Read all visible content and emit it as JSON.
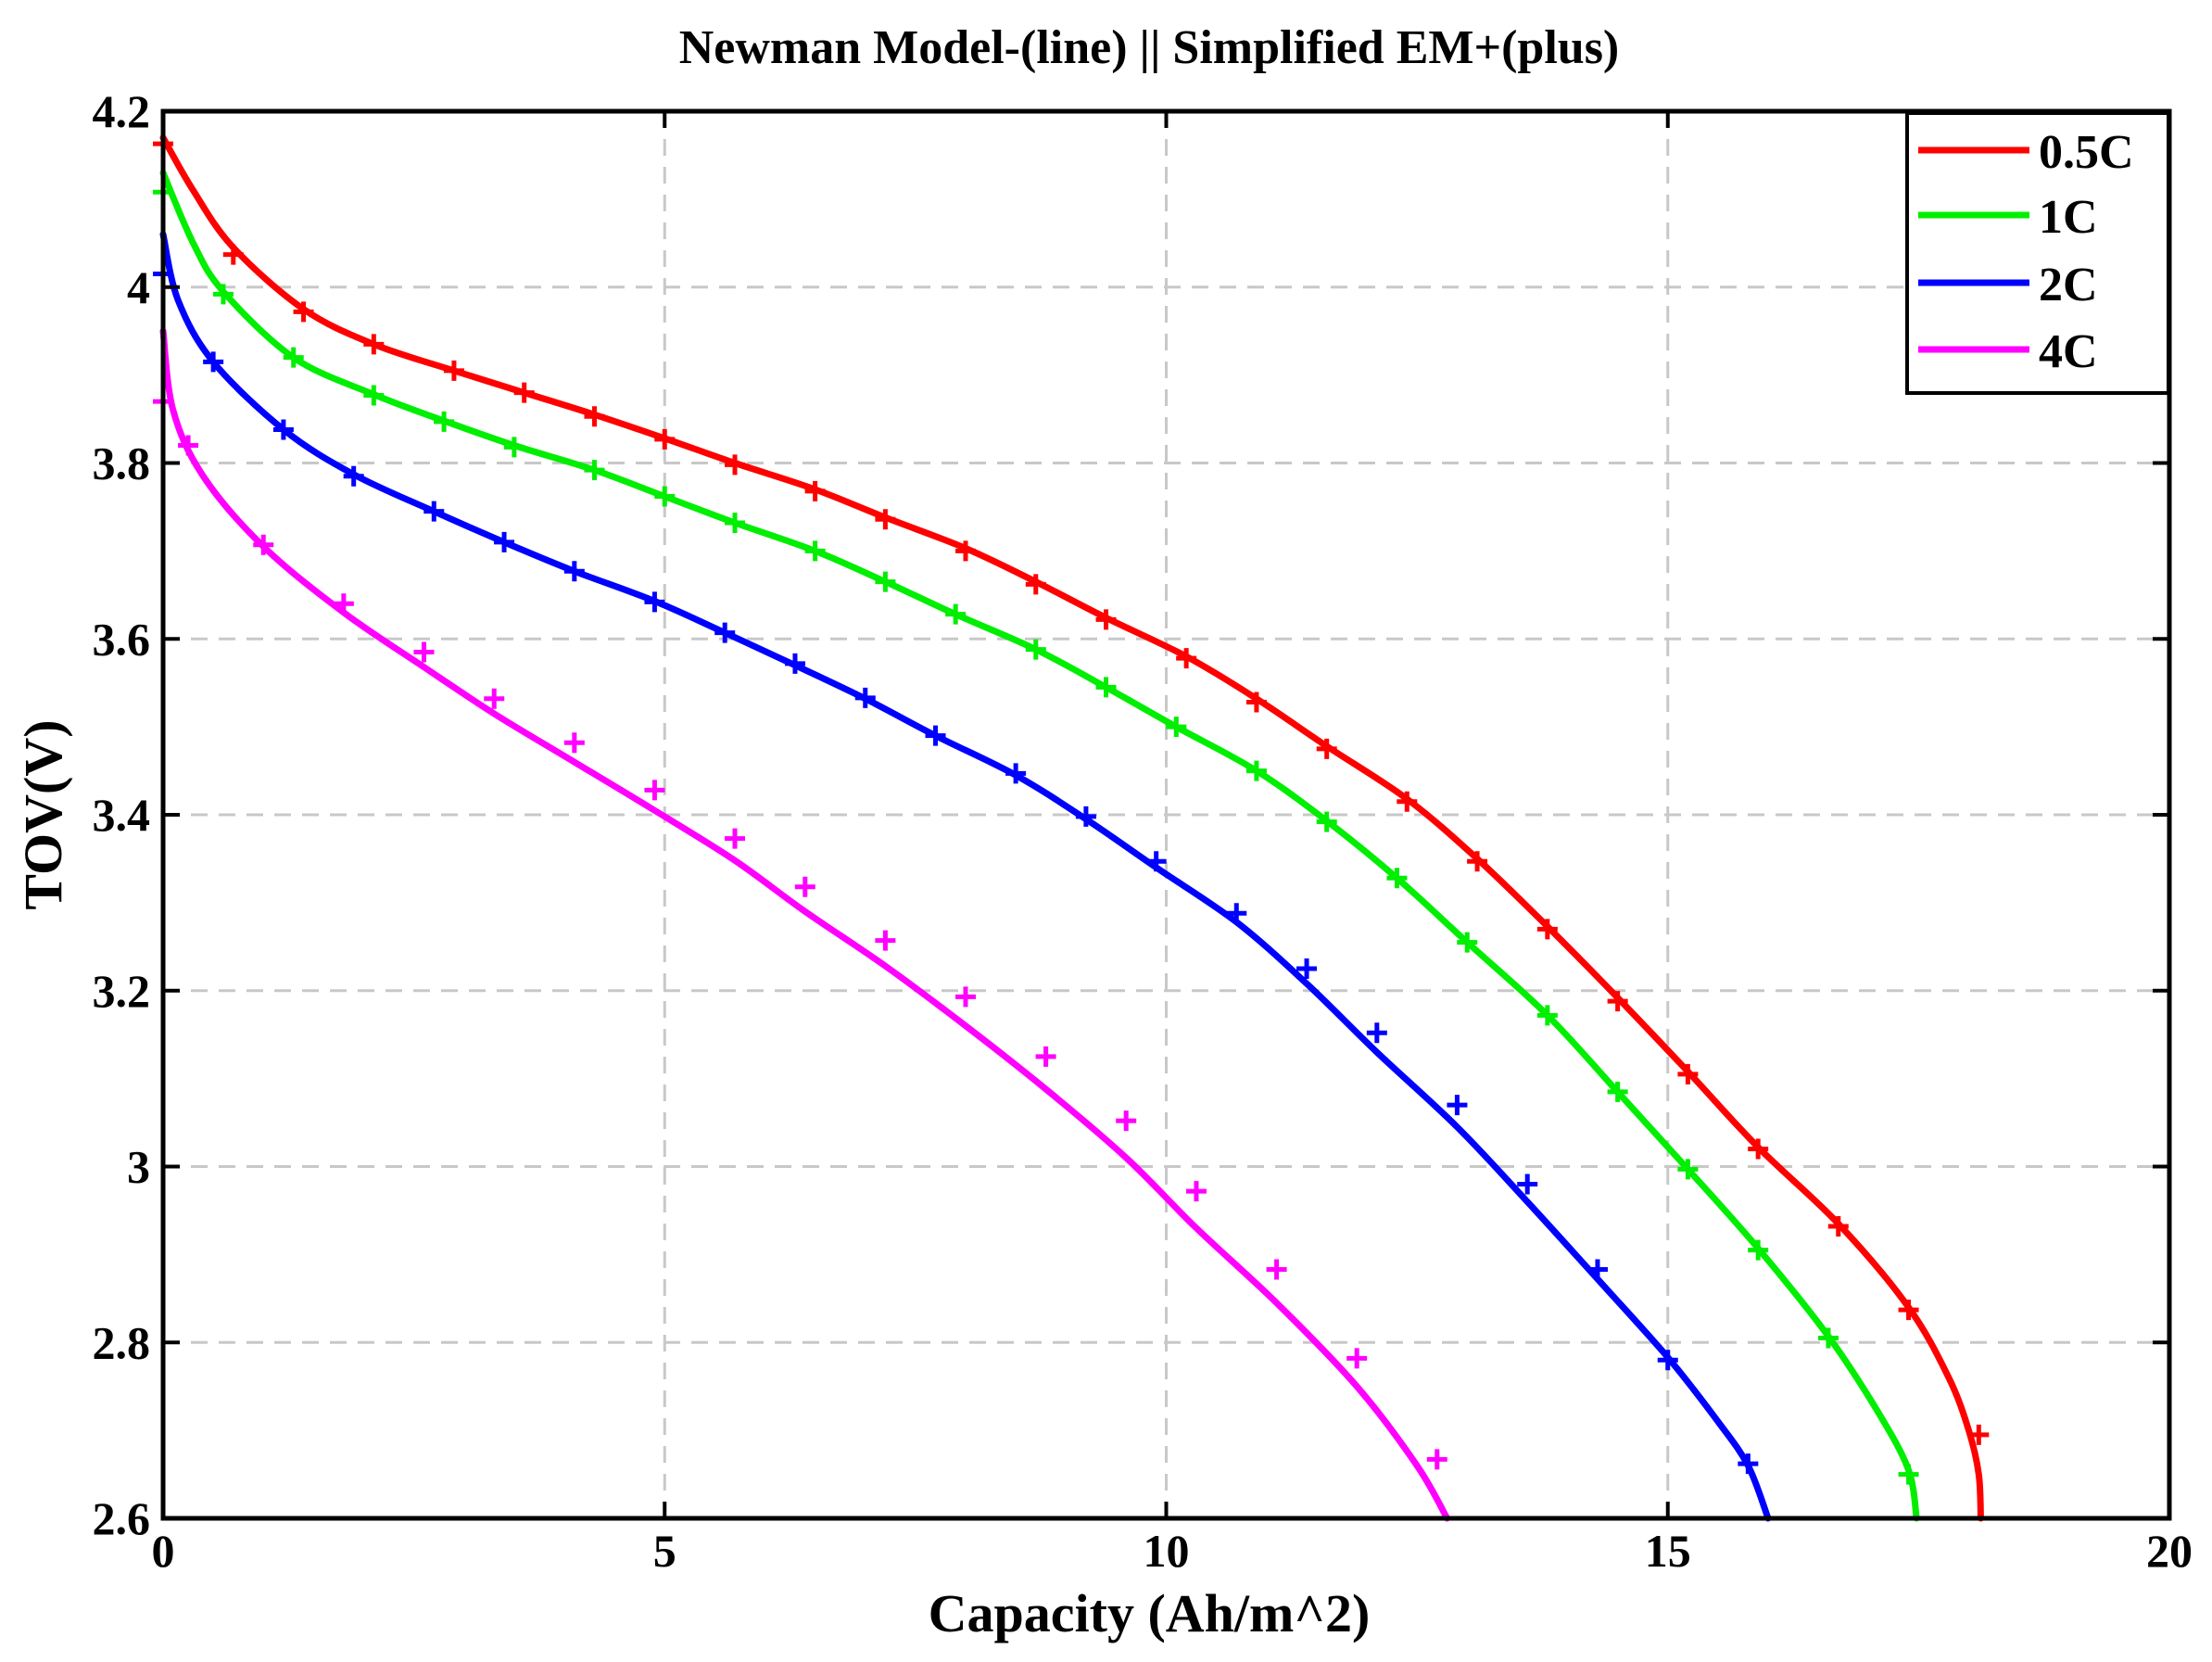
{
  "chart_data": {
    "type": "line",
    "title": "Newman Model-(line) || Simplified EM+(plus)",
    "xlabel": "Capacity (Ah/m^2)",
    "ylabel": "TOV(V)",
    "xlim": [
      0,
      20
    ],
    "ylim": [
      2.6,
      4.2
    ],
    "grid": true,
    "legend_position": "top-right",
    "x_ticks": [
      0,
      5,
      10,
      15,
      20
    ],
    "x_tick_labels": [
      "0",
      "5",
      "10",
      "15",
      "20"
    ],
    "y_ticks": [
      2.6,
      2.8,
      3.0,
      3.2,
      3.4,
      3.6,
      3.8,
      4.0,
      4.2
    ],
    "y_tick_labels": [
      "2.6",
      "2.8",
      "3",
      "3.2",
      "3.4",
      "3.6",
      "3.8",
      "4",
      "4.2"
    ],
    "series": [
      {
        "name": "0.5C",
        "color": "#ff0000",
        "line": [
          [
            0,
            4.17
          ],
          [
            0.3,
            4.11
          ],
          [
            0.7,
            4.045
          ],
          [
            1.4,
            3.975
          ],
          [
            2.1,
            3.935
          ],
          [
            2.9,
            3.905
          ],
          [
            3.6,
            3.88
          ],
          [
            4.3,
            3.855
          ],
          [
            5.0,
            3.828
          ],
          [
            5.7,
            3.8
          ],
          [
            6.5,
            3.77
          ],
          [
            7.2,
            3.738
          ],
          [
            8.0,
            3.703
          ],
          [
            8.7,
            3.665
          ],
          [
            9.4,
            3.624
          ],
          [
            10.2,
            3.58
          ],
          [
            10.9,
            3.532
          ],
          [
            11.6,
            3.478
          ],
          [
            12.4,
            3.418
          ],
          [
            13.1,
            3.35
          ],
          [
            13.8,
            3.273
          ],
          [
            14.5,
            3.192
          ],
          [
            15.2,
            3.108
          ],
          [
            15.9,
            3.022
          ],
          [
            16.7,
            2.935
          ],
          [
            17.4,
            2.84
          ],
          [
            17.8,
            2.76
          ],
          [
            18.0,
            2.7
          ],
          [
            18.1,
            2.65
          ],
          [
            18.12,
            2.6
          ]
        ],
        "markers": [
          [
            0,
            4.163
          ],
          [
            0.7,
            4.037
          ],
          [
            1.4,
            3.972
          ],
          [
            2.1,
            3.935
          ],
          [
            2.9,
            3.905
          ],
          [
            3.6,
            3.88
          ],
          [
            4.3,
            3.853
          ],
          [
            5.0,
            3.827
          ],
          [
            5.7,
            3.798
          ],
          [
            6.5,
            3.768
          ],
          [
            7.2,
            3.736
          ],
          [
            8.0,
            3.7
          ],
          [
            8.7,
            3.662
          ],
          [
            9.4,
            3.622
          ],
          [
            10.2,
            3.578
          ],
          [
            10.9,
            3.528
          ],
          [
            11.6,
            3.475
          ],
          [
            12.4,
            3.415
          ],
          [
            13.1,
            3.347
          ],
          [
            13.8,
            3.27
          ],
          [
            14.5,
            3.188
          ],
          [
            15.2,
            3.105
          ],
          [
            15.9,
            3.02
          ],
          [
            16.7,
            2.932
          ],
          [
            17.4,
            2.837
          ],
          [
            18.1,
            2.695
          ]
        ]
      },
      {
        "name": "1C",
        "color": "#00ee00",
        "line": [
          [
            0,
            4.13
          ],
          [
            0.3,
            4.05
          ],
          [
            0.6,
            3.995
          ],
          [
            1.3,
            3.92
          ],
          [
            2.1,
            3.878
          ],
          [
            2.8,
            3.848
          ],
          [
            3.5,
            3.82
          ],
          [
            4.3,
            3.792
          ],
          [
            5.0,
            3.762
          ],
          [
            5.7,
            3.732
          ],
          [
            6.5,
            3.7
          ],
          [
            7.2,
            3.665
          ],
          [
            7.9,
            3.628
          ],
          [
            8.7,
            3.588
          ],
          [
            9.4,
            3.545
          ],
          [
            10.1,
            3.5
          ],
          [
            10.9,
            3.45
          ],
          [
            11.6,
            3.393
          ],
          [
            12.3,
            3.328
          ],
          [
            13.0,
            3.255
          ],
          [
            13.8,
            3.172
          ],
          [
            14.5,
            3.085
          ],
          [
            15.2,
            2.997
          ],
          [
            15.9,
            2.907
          ],
          [
            16.6,
            2.807
          ],
          [
            17.1,
            2.72
          ],
          [
            17.4,
            2.655
          ],
          [
            17.48,
            2.6
          ]
        ],
        "markers": [
          [
            0,
            4.108
          ],
          [
            0.6,
            3.992
          ],
          [
            1.3,
            3.92
          ],
          [
            2.1,
            3.877
          ],
          [
            2.8,
            3.847
          ],
          [
            3.5,
            3.818
          ],
          [
            4.3,
            3.792
          ],
          [
            5.0,
            3.762
          ],
          [
            5.7,
            3.732
          ],
          [
            6.5,
            3.7
          ],
          [
            7.2,
            3.665
          ],
          [
            7.9,
            3.628
          ],
          [
            8.7,
            3.588
          ],
          [
            9.4,
            3.545
          ],
          [
            10.1,
            3.5
          ],
          [
            10.9,
            3.45
          ],
          [
            11.6,
            3.392
          ],
          [
            12.3,
            3.328
          ],
          [
            13.0,
            3.255
          ],
          [
            13.8,
            3.172
          ],
          [
            14.5,
            3.085
          ],
          [
            15.2,
            2.997
          ],
          [
            15.9,
            2.905
          ],
          [
            16.6,
            2.805
          ],
          [
            17.4,
            2.65
          ]
        ]
      },
      {
        "name": "2C",
        "color": "#0000ff",
        "line": [
          [
            0,
            4.06
          ],
          [
            0.15,
            3.985
          ],
          [
            0.5,
            3.915
          ],
          [
            1.2,
            3.838
          ],
          [
            1.9,
            3.787
          ],
          [
            2.7,
            3.745
          ],
          [
            3.4,
            3.71
          ],
          [
            4.1,
            3.677
          ],
          [
            4.9,
            3.643
          ],
          [
            5.6,
            3.607
          ],
          [
            6.3,
            3.57
          ],
          [
            7.0,
            3.532
          ],
          [
            7.7,
            3.49
          ],
          [
            8.5,
            3.445
          ],
          [
            9.2,
            3.395
          ],
          [
            9.9,
            3.34
          ],
          [
            10.7,
            3.278
          ],
          [
            11.4,
            3.208
          ],
          [
            12.1,
            3.13
          ],
          [
            12.9,
            3.045
          ],
          [
            13.6,
            2.96
          ],
          [
            14.3,
            2.872
          ],
          [
            15.0,
            2.783
          ],
          [
            15.5,
            2.71
          ],
          [
            15.8,
            2.66
          ],
          [
            16.0,
            2.6
          ]
        ],
        "markers": [
          [
            0,
            4.015
          ],
          [
            0.5,
            3.915
          ],
          [
            1.2,
            3.838
          ],
          [
            1.9,
            3.785
          ],
          [
            2.7,
            3.745
          ],
          [
            3.4,
            3.71
          ],
          [
            4.1,
            3.677
          ],
          [
            4.9,
            3.642
          ],
          [
            5.6,
            3.607
          ],
          [
            6.3,
            3.572
          ],
          [
            7.0,
            3.533
          ],
          [
            7.7,
            3.49
          ],
          [
            8.5,
            3.447
          ],
          [
            9.2,
            3.398
          ],
          [
            9.9,
            3.347
          ],
          [
            10.7,
            3.288
          ],
          [
            11.4,
            3.225
          ],
          [
            12.1,
            3.152
          ],
          [
            12.9,
            3.07
          ],
          [
            13.6,
            2.98
          ],
          [
            14.3,
            2.883
          ],
          [
            15.0,
            2.78
          ],
          [
            15.8,
            2.662
          ]
        ]
      },
      {
        "name": "4C",
        "color": "#ff00ff",
        "line": [
          [
            0,
            3.95
          ],
          [
            0.1,
            3.86
          ],
          [
            0.4,
            3.785
          ],
          [
            1.0,
            3.705
          ],
          [
            1.8,
            3.63
          ],
          [
            2.6,
            3.568
          ],
          [
            3.3,
            3.515
          ],
          [
            4.1,
            3.46
          ],
          [
            4.9,
            3.405
          ],
          [
            5.7,
            3.348
          ],
          [
            6.4,
            3.29
          ],
          [
            7.2,
            3.228
          ],
          [
            8.0,
            3.16
          ],
          [
            8.8,
            3.088
          ],
          [
            9.6,
            3.01
          ],
          [
            10.3,
            2.93
          ],
          [
            11.1,
            2.845
          ],
          [
            11.9,
            2.75
          ],
          [
            12.5,
            2.66
          ],
          [
            12.8,
            2.6
          ]
        ],
        "markers": [
          [
            0,
            3.87
          ],
          [
            0.25,
            3.82
          ],
          [
            1.0,
            3.707
          ],
          [
            1.8,
            3.64
          ],
          [
            2.6,
            3.585
          ],
          [
            3.3,
            3.532
          ],
          [
            4.1,
            3.482
          ],
          [
            4.9,
            3.428
          ],
          [
            5.7,
            3.373
          ],
          [
            6.4,
            3.318
          ],
          [
            7.2,
            3.257
          ],
          [
            8.0,
            3.193
          ],
          [
            8.8,
            3.125
          ],
          [
            9.6,
            3.052
          ],
          [
            10.3,
            2.972
          ],
          [
            11.1,
            2.883
          ],
          [
            11.9,
            2.782
          ],
          [
            12.7,
            2.667
          ]
        ]
      }
    ]
  }
}
